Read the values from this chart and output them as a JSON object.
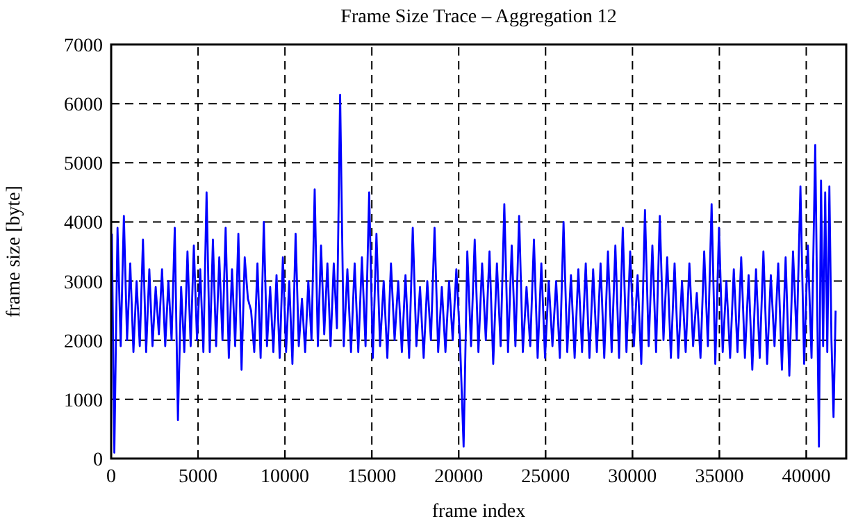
{
  "chart_data": {
    "type": "line",
    "title": "Frame Size Trace – Aggregation 12",
    "xlabel": "frame index",
    "ylabel": "frame size [byte]",
    "xlim": [
      0,
      42300
    ],
    "ylim": [
      0,
      7000
    ],
    "xticks": [
      0,
      5000,
      10000,
      15000,
      20000,
      25000,
      30000,
      35000,
      40000
    ],
    "yticks": [
      0,
      1000,
      2000,
      3000,
      4000,
      5000,
      6000,
      7000
    ],
    "grid": true,
    "series": [
      {
        "color": "#0000ff",
        "x": [
          40,
          183,
          366,
          549,
          732,
          915,
          1098,
          1281,
          1464,
          1647,
          1830,
          2013,
          2196,
          2379,
          2562,
          2745,
          2928,
          3111,
          3294,
          3477,
          3660,
          3843,
          4026,
          4209,
          4392,
          4575,
          4758,
          4941,
          5124,
          5307,
          5490,
          5673,
          5856,
          6039,
          6222,
          6405,
          6588,
          6771,
          6954,
          7137,
          7320,
          7503,
          7686,
          7869,
          8052,
          8235,
          8418,
          8601,
          8784,
          8967,
          9150,
          9333,
          9516,
          9699,
          9882,
          10065,
          10248,
          10431,
          10614,
          10797,
          10980,
          11163,
          11346,
          11529,
          11712,
          11895,
          12078,
          12261,
          12444,
          12627,
          12810,
          12993,
          13176,
          13385,
          13594,
          13803,
          14012,
          14221,
          14430,
          14639,
          14848,
          15057,
          15266,
          15475,
          15684,
          15893,
          16102,
          16311,
          16520,
          16729,
          16938,
          17147,
          17356,
          17565,
          17774,
          17983,
          18192,
          18401,
          18610,
          18819,
          19028,
          19237,
          19446,
          19655,
          19864,
          20073,
          20282,
          20495,
          20708,
          20921,
          21134,
          21347,
          21560,
          21773,
          21986,
          22199,
          22412,
          22625,
          22838,
          23051,
          23264,
          23477,
          23690,
          23903,
          24116,
          24329,
          24542,
          24755,
          24968,
          25181,
          25394,
          25607,
          25820,
          26033,
          26246,
          26459,
          26672,
          26885,
          27098,
          27311,
          27524,
          27737,
          27950,
          28163,
          28376,
          28589,
          28802,
          29015,
          29228,
          29441,
          29654,
          29867,
          30080,
          30293,
          30506,
          30719,
          30932,
          31145,
          31358,
          31571,
          31784,
          31997,
          32210,
          32423,
          32636,
          32849,
          33062,
          33275,
          33488,
          33701,
          33914,
          34127,
          34340,
          34553,
          34766,
          34979,
          35192,
          35405,
          35618,
          35831,
          36044,
          36257,
          36470,
          36683,
          36896,
          37109,
          37322,
          37535,
          37748,
          37961,
          38174,
          38387,
          38600,
          38813,
          39026,
          39239,
          39452,
          39665,
          39878,
          40091,
          40304,
          40517,
          40730,
          40850,
          40970,
          41090,
          41210,
          41330,
          41450,
          41570,
          41690
        ],
        "values": [
          3800,
          100,
          3900,
          1900,
          4100,
          2000,
          3300,
          1800,
          3000,
          1900,
          3700,
          1800,
          3200,
          1900,
          2900,
          2100,
          3200,
          1900,
          3000,
          2000,
          3900,
          650,
          2900,
          1800,
          3500,
          1900,
          3600,
          2000,
          3200,
          1800,
          4500,
          1800,
          3700,
          1900,
          3400,
          2000,
          3900,
          1700,
          3200,
          1900,
          3800,
          1500,
          3400,
          2700,
          2500,
          1800,
          3300,
          1700,
          4000,
          1900,
          2900,
          1800,
          3100,
          1700,
          3400,
          1800,
          3000,
          1600,
          3800,
          1900,
          2700,
          1800,
          3000,
          2000,
          4550,
          1900,
          3600,
          2100,
          3300,
          1900,
          3300,
          2200,
          6150,
          1900,
          3200,
          1800,
          3300,
          1800,
          3400,
          1900,
          4500,
          1700,
          3800,
          1900,
          3000,
          1700,
          3300,
          2000,
          3000,
          1800,
          3100,
          1700,
          3900,
          1900,
          2900,
          1700,
          3000,
          2000,
          3900,
          1800,
          2900,
          1800,
          3000,
          2000,
          3200,
          2000,
          200,
          3500,
          1900,
          3700,
          1800,
          3300,
          2000,
          3500,
          1600,
          3300,
          1900,
          4300,
          1800,
          3600,
          1900,
          4100,
          1800,
          2900,
          1900,
          3700,
          1700,
          3300,
          1700,
          3000,
          1900,
          3000,
          1700,
          4000,
          1800,
          3100,
          1700,
          3200,
          1800,
          3300,
          1700,
          3200,
          1800,
          3300,
          1700,
          3500,
          1800,
          3600,
          1700,
          3900,
          1800,
          3500,
          1900,
          3100,
          1600,
          4200,
          1900,
          3600,
          1800,
          4100,
          2000,
          3400,
          1700,
          3300,
          1700,
          3000,
          1800,
          3300,
          1900,
          2800,
          1700,
          3500,
          1900,
          4300,
          1600,
          3900,
          1800,
          3000,
          1700,
          3200,
          1800,
          3400,
          1700,
          3100,
          1500,
          3200,
          1700,
          3500,
          1600,
          3100,
          1900,
          3300,
          1500,
          3400,
          1400,
          3500,
          2000,
          4600,
          1600,
          3600,
          1700,
          5300,
          200,
          4700,
          1900,
          4500,
          1800,
          4600,
          2000,
          700,
          2500
        ]
      }
    ]
  }
}
